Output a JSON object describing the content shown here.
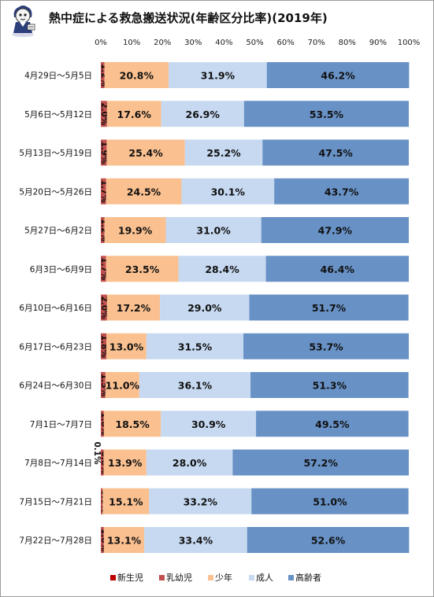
{
  "chart_data": {
    "type": "bar",
    "stacked": true,
    "orientation": "horizontal",
    "title": "熱中症による救急搬送状況(年齢区分比率)(2019年)",
    "xlim": [
      0,
      100
    ],
    "x_ticks": [
      "0%",
      "10%",
      "20%",
      "30%",
      "40%",
      "50%",
      "60%",
      "70%",
      "80%",
      "90%",
      "100%"
    ],
    "grid": false,
    "legend_position": "bottom",
    "categories": [
      "4月29日～5月5日",
      "5月6日～5月12日",
      "5月13日～5月19日",
      "5月20日～5月26日",
      "5月27日～6月2日",
      "6月3日～6月9日",
      "6月10日～6月16日",
      "6月17日～6月23日",
      "6月24日～6月30日",
      "7月1日～7月7日",
      "7月8日～7月14日",
      "7月15日～7月21日",
      "7月22日～7月28日"
    ],
    "series": [
      {
        "name": "新生児",
        "color": "#c00000",
        "values": [
          0,
          0,
          0,
          0,
          0,
          0,
          0,
          0,
          0,
          0,
          0.1,
          0,
          0
        ],
        "labels": [
          "",
          "",
          "",
          "",
          "",
          "",
          "",
          "",
          "",
          "",
          "0.1%",
          "",
          ""
        ]
      },
      {
        "name": "乳幼児",
        "color": "#c0504d",
        "values": [
          1.2,
          2.0,
          1.9,
          1.7,
          1.2,
          1.7,
          2.0,
          1.8,
          1.5,
          1.0,
          0.8,
          0.6,
          1.0
        ],
        "labels": [
          "1.2%",
          "2.0%",
          "1.9%",
          "1.7%",
          "1.2%",
          "1.7%",
          "2.0%",
          "1.8%",
          "1.5%",
          "1.0%",
          "0.8%",
          "0.6%",
          "1.0%"
        ]
      },
      {
        "name": "少年",
        "color": "#fac090",
        "values": [
          20.8,
          17.6,
          25.4,
          24.5,
          19.9,
          23.5,
          17.2,
          13.0,
          11.0,
          18.5,
          13.9,
          15.1,
          13.1
        ],
        "labels": [
          "20.8%",
          "17.6%",
          "25.4%",
          "24.5%",
          "19.9%",
          "23.5%",
          "17.2%",
          "13.0%",
          "11.0%",
          "18.5%",
          "13.9%",
          "15.1%",
          "13.1%"
        ]
      },
      {
        "name": "成人",
        "color": "#c6d9f1",
        "values": [
          31.9,
          26.9,
          25.2,
          30.1,
          31.0,
          28.4,
          29.0,
          31.5,
          36.1,
          30.9,
          28.0,
          33.2,
          33.4
        ],
        "labels": [
          "31.9%",
          "26.9%",
          "25.2%",
          "30.1%",
          "31.0%",
          "28.4%",
          "29.0%",
          "31.5%",
          "36.1%",
          "30.9%",
          "28.0%",
          "33.2%",
          "33.4%"
        ]
      },
      {
        "name": "高齢者",
        "color": "#6891c6",
        "values": [
          46.2,
          53.5,
          47.5,
          43.7,
          47.9,
          46.4,
          51.7,
          53.7,
          51.3,
          49.5,
          57.2,
          51.0,
          52.6
        ],
        "labels": [
          "46.2%",
          "53.5%",
          "47.5%",
          "43.7%",
          "47.9%",
          "46.4%",
          "51.7%",
          "53.7%",
          "51.3%",
          "49.5%",
          "57.2%",
          "51.0%",
          "52.6%"
        ]
      }
    ]
  },
  "mascot": {
    "icon": "mascot-character-icon"
  }
}
